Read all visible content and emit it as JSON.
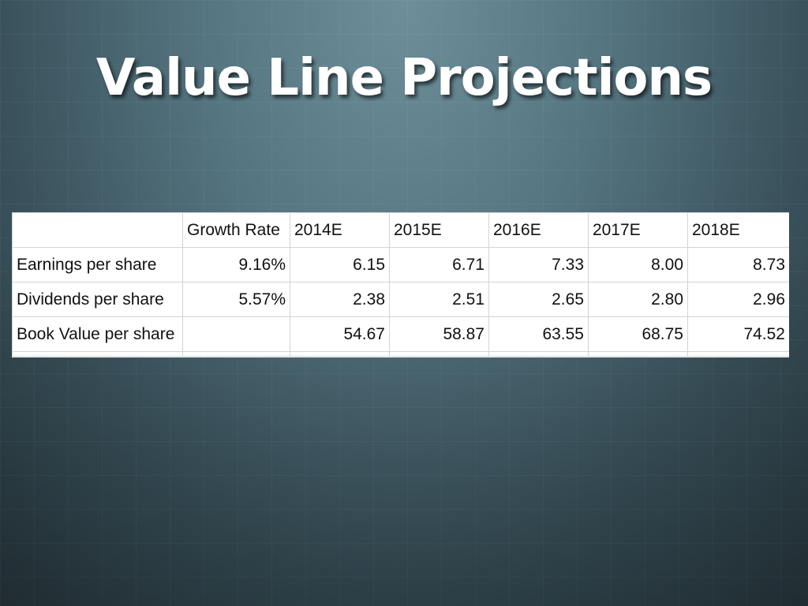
{
  "slide": {
    "title": "Value Line Projections"
  },
  "table": {
    "columns": [
      "",
      "Growth Rate",
      "2014E",
      "2015E",
      "2016E",
      "2017E",
      "2018E"
    ],
    "rows": [
      {
        "label": "Earnings per share",
        "growth": "9.16%",
        "values": [
          "6.15",
          "6.71",
          "7.33",
          "8.00",
          "8.73"
        ]
      },
      {
        "label": "Dividends per share",
        "growth": "5.57%",
        "values": [
          "2.38",
          "2.51",
          "2.65",
          "2.80",
          "2.96"
        ]
      },
      {
        "label": "Book Value per share",
        "growth": "",
        "values": [
          "54.67",
          "58.87",
          "63.55",
          "68.75",
          "74.52"
        ]
      }
    ]
  },
  "colors": {
    "background": "#557581",
    "title": "#ffffff",
    "table_background": "#ffffff",
    "grid": "#d4d4d4"
  }
}
